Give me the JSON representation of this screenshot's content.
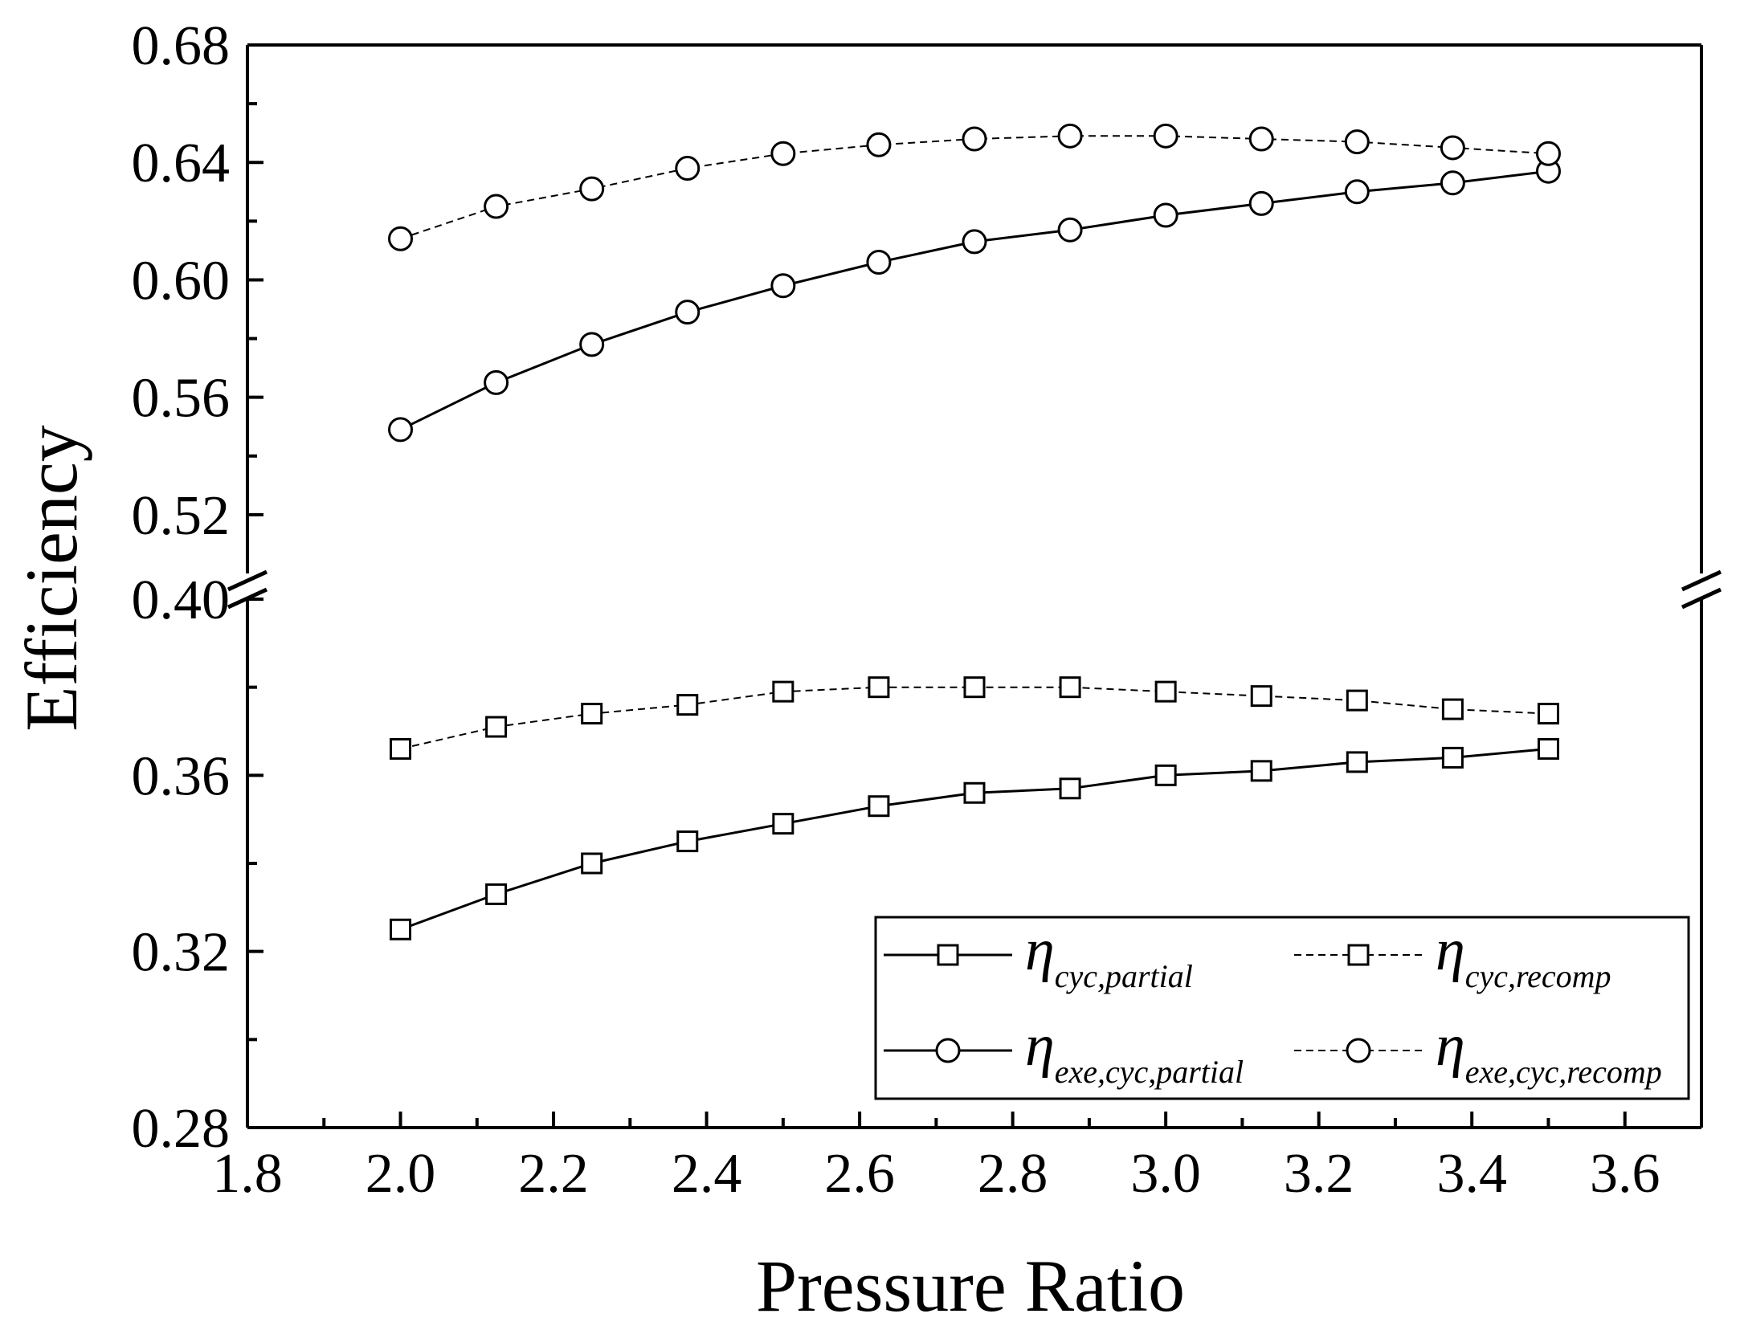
{
  "chart_data": {
    "type": "line",
    "title": "",
    "xlabel": "Pressure Ratio",
    "ylabel": "Efficiency",
    "xlim": [
      1.8,
      3.7
    ],
    "x_ticks": [
      "1.8",
      "2.0",
      "2.2",
      "2.4",
      "2.6",
      "2.8",
      "3.0",
      "3.2",
      "3.4",
      "3.6"
    ],
    "broken_y_axis": true,
    "upper_panel": {
      "ylim": [
        0.5,
        0.68
      ],
      "y_ticks": [
        "0.52",
        "0.56",
        "0.60",
        "0.64",
        "0.68"
      ]
    },
    "lower_panel": {
      "ylim": [
        0.28,
        0.4
      ],
      "y_ticks": [
        "0.28",
        "0.32",
        "0.36",
        "0.40"
      ]
    },
    "x": [
      2.0,
      2.125,
      2.25,
      2.375,
      2.5,
      2.625,
      2.75,
      2.875,
      3.0,
      3.125,
      3.25,
      3.375,
      3.5
    ],
    "series": [
      {
        "name": "η cyc,partial",
        "symbol": "η",
        "subscript": "cyc,partial",
        "panel": "lower",
        "marker": "square",
        "line": "solid",
        "values": [
          0.325,
          0.333,
          0.34,
          0.345,
          0.349,
          0.353,
          0.356,
          0.357,
          0.36,
          0.361,
          0.363,
          0.364,
          0.366
        ]
      },
      {
        "name": "η cyc,recomp",
        "symbol": "η",
        "subscript": "cyc,recomp",
        "panel": "lower",
        "marker": "square",
        "line": "dashed",
        "values": [
          0.366,
          0.371,
          0.374,
          0.376,
          0.379,
          0.38,
          0.38,
          0.38,
          0.379,
          0.378,
          0.377,
          0.375,
          0.374
        ]
      },
      {
        "name": "η exe,cyc,partial",
        "symbol": "η",
        "subscript": "exe,cyc,partial",
        "panel": "upper",
        "marker": "circle",
        "line": "solid",
        "values": [
          0.549,
          0.565,
          0.578,
          0.589,
          0.598,
          0.606,
          0.613,
          0.617,
          0.622,
          0.626,
          0.63,
          0.633,
          0.637
        ]
      },
      {
        "name": "η exe,cyc,recomp",
        "symbol": "η",
        "subscript": "exe,cyc,recomp",
        "panel": "upper",
        "marker": "circle",
        "line": "dashed",
        "values": [
          0.614,
          0.625,
          0.631,
          0.638,
          0.643,
          0.646,
          0.648,
          0.649,
          0.649,
          0.648,
          0.647,
          0.645,
          0.643
        ]
      }
    ],
    "legend_position": "bottom-right"
  }
}
